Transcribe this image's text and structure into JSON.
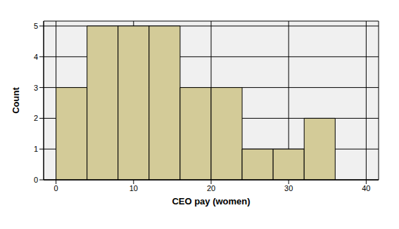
{
  "chart_data": {
    "type": "histogram",
    "bins": [
      0,
      4,
      8,
      12,
      16,
      20,
      24,
      28,
      32,
      36
    ],
    "counts": [
      3,
      5,
      5,
      5,
      3,
      3,
      1,
      1,
      2
    ],
    "xlabel": "CEO pay (women)",
    "ylabel": "Count",
    "xlim": [
      -1.6,
      41.6
    ],
    "ylim": [
      0,
      5.16
    ],
    "xticks": [
      0,
      10,
      20,
      30,
      40
    ],
    "yticks": [
      0,
      1,
      2,
      3,
      4,
      5
    ],
    "color": "#d3cb98",
    "grid": true
  }
}
